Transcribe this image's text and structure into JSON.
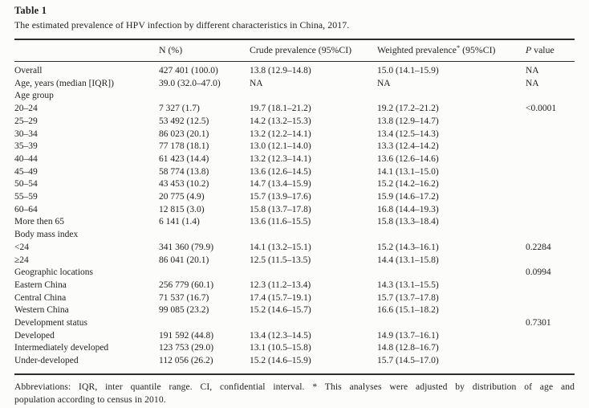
{
  "title": "Table 1",
  "caption": "The estimated prevalence of HPV infection by different characteristics in China, 2017.",
  "table": {
    "columns": {
      "characteristic": "",
      "n": "N (%)",
      "crude": "Crude prevalence (95%CI)",
      "weighted_pre": "Weighted prevalence",
      "weighted_sup": "*",
      "weighted_post": " (95%CI)",
      "p_italic": "P",
      "p_rest": " value"
    },
    "rows": [
      {
        "label": "Overall",
        "n": "427 401 (100.0)",
        "crude": "13.8 (12.9–14.8)",
        "weighted": "15.0 (14.1–15.9)",
        "p": "NA"
      },
      {
        "label": "Age, years (median [IQR])",
        "n": "39.0 (32.0–47.0)",
        "crude": "NA",
        "weighted": "NA",
        "p": "NA"
      },
      {
        "label": "Age group",
        "section": true,
        "n": "",
        "crude": "",
        "weighted": "",
        "p": ""
      },
      {
        "label": "20–24",
        "n": "7 327 (1.7)",
        "crude": "19.7 (18.1–21.2)",
        "weighted": "19.2 (17.2–21.2)",
        "p": "<0.0001"
      },
      {
        "label": "25–29",
        "n": "53 492 (12.5)",
        "crude": "14.2 (13.2–15.3)",
        "weighted": "13.8 (12.9–14.7)",
        "p": ""
      },
      {
        "label": "30–34",
        "n": "86 023 (20.1)",
        "crude": "13.2 (12.2–14.1)",
        "weighted": "13.4 (12.5–14.3)",
        "p": ""
      },
      {
        "label": "35–39",
        "n": "77 178 (18.1)",
        "crude": "13.0 (12.1–14.0)",
        "weighted": "13.3 (12.4–14.2)",
        "p": ""
      },
      {
        "label": "40–44",
        "n": "61 423 (14.4)",
        "crude": "13.2 (12.3–14.1)",
        "weighted": "13.6 (12.6–14.6)",
        "p": ""
      },
      {
        "label": "45–49",
        "n": "58 774 (13.8)",
        "crude": "13.6 (12.6–14.5)",
        "weighted": "14.1 (13.1–15.0)",
        "p": ""
      },
      {
        "label": "50–54",
        "n": "43 453 (10.2)",
        "crude": "14.7 (13.4–15.9)",
        "weighted": "15.2 (14.2–16.2)",
        "p": ""
      },
      {
        "label": "55–59",
        "n": "20 775 (4.9)",
        "crude": "15.7 (13.9–17.6)",
        "weighted": "15.9 (14.6–17.2)",
        "p": ""
      },
      {
        "label": "60–64",
        "n": "12 815 (3.0)",
        "crude": "15.8 (13.7–17.8)",
        "weighted": "16.8 (14.4–19.3)",
        "p": ""
      },
      {
        "label": "More then 65",
        "n": "6 141 (1.4)",
        "crude": "13.6 (11.6–15.5)",
        "weighted": "15.8 (13.3–18.4)",
        "p": ""
      },
      {
        "label": "Body mass index",
        "section": true,
        "n": "",
        "crude": "",
        "weighted": "",
        "p": ""
      },
      {
        "label": "<24",
        "n": "341 360 (79.9)",
        "crude": "14.1 (13.2–15.1)",
        "weighted": "15.2 (14.3–16.1)",
        "p": "0.2284"
      },
      {
        "label": "≥24",
        "n": "86 041 (20.1)",
        "crude": "12.5 (11.5–13.5)",
        "weighted": "14.4 (13.1–15.8)",
        "p": ""
      },
      {
        "label": "Geographic locations",
        "section": true,
        "n": "",
        "crude": "",
        "weighted": "",
        "p": "0.0994"
      },
      {
        "label": "Eastern China",
        "n": "256 779 (60.1)",
        "crude": "12.3 (11.2–13.4)",
        "weighted": "14.3 (13.1–15.5)",
        "p": ""
      },
      {
        "label": "Central China",
        "n": "71 537 (16.7)",
        "crude": "17.4 (15.7–19.1)",
        "weighted": "15.7 (13.7–17.8)",
        "p": ""
      },
      {
        "label": "Western China",
        "n": "99 085 (23.2)",
        "crude": "15.2 (14.6–15.7)",
        "weighted": "16.6 (15.1–18.2)",
        "p": ""
      },
      {
        "label": "Development status",
        "section": true,
        "n": "",
        "crude": "",
        "weighted": "",
        "p": "0.7301"
      },
      {
        "label": "Developed",
        "n": "191 592 (44.8)",
        "crude": "13.4 (12.3–14.5)",
        "weighted": "14.9 (13.7–16.1)",
        "p": ""
      },
      {
        "label": "Intermediately developed",
        "n": "123 753 (29.0)",
        "crude": "13.1 (10.5–15.8)",
        "weighted": "14.8 (12.8–16.7)",
        "p": ""
      },
      {
        "label": "Under-developed",
        "n": "112 056 (26.2)",
        "crude": "15.2 (14.6–15.9)",
        "weighted": "15.7 (14.5–17.0)",
        "p": ""
      }
    ]
  },
  "footnote": {
    "line1": "Abbreviations: IQR, inter quantile range. CI, confidential interval. * This analyses were adjusted by distribution of age and",
    "line2": "population according to census in 2010."
  },
  "colors": {
    "background": "#fcfcfb",
    "text": "#222222",
    "rule": "#2e2e2e"
  }
}
